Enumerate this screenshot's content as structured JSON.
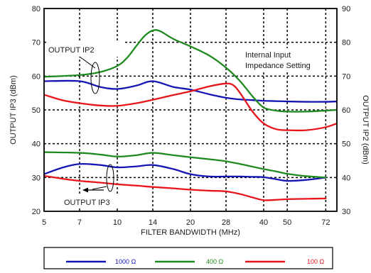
{
  "chart_data": {
    "type": "line",
    "title": "",
    "xlabel": "FILTER BANDWIDTH (MHz)",
    "ylabel_left": "OUTPUT IP3 (dBm)",
    "ylabel_right": "OUTPUT IP2 (dBm)",
    "x_scale": "log",
    "xlim": [
      5,
      80
    ],
    "x_ticks": [
      5,
      7,
      10,
      14,
      20,
      28,
      40,
      50,
      72
    ],
    "x_tick_labels": [
      "5",
      "7",
      "10",
      "14",
      "20",
      "28",
      "40",
      "50",
      "72"
    ],
    "ylim_left": [
      20,
      80
    ],
    "y_ticks_left": [
      20,
      30,
      40,
      50,
      60,
      70,
      80
    ],
    "ylim_right": [
      30,
      90
    ],
    "y_ticks_right": [
      30,
      40,
      50,
      60,
      70,
      80,
      90
    ],
    "grid": "dashed",
    "annotations": {
      "ip2": "OUTPUT IP2",
      "ip3": "OUTPUT IP3",
      "impedance_line1": "Internal Input",
      "impedance_line2": "Impedance Setting"
    },
    "legend": [
      {
        "label": "1000 Ω",
        "color": "#1515b5"
      },
      {
        "label": "400 Ω",
        "color": "#1f8a1f"
      },
      {
        "label": "100 Ω",
        "color": "#e8141c"
      }
    ],
    "series": [
      {
        "group": "ip2",
        "legend_index": 0,
        "axis": "right",
        "x": [
          5,
          7,
          8.5,
          10,
          12,
          14,
          17,
          20,
          24,
          28,
          32,
          36,
          40,
          45,
          50,
          60,
          72,
          80
        ],
        "y": [
          68.5,
          68.5,
          66.8,
          66.2,
          67.2,
          68.5,
          66.8,
          66.0,
          64.6,
          63.6,
          63.1,
          62.9,
          62.7,
          62.6,
          62.5,
          62.4,
          62.4,
          62.5
        ]
      },
      {
        "group": "ip2",
        "legend_index": 1,
        "axis": "right",
        "x": [
          5,
          7,
          8.5,
          10,
          11,
          12,
          13,
          14,
          15,
          17,
          20,
          24,
          28,
          32,
          36,
          40,
          45,
          50,
          60,
          72,
          80
        ],
        "y": [
          69.8,
          70.3,
          71.2,
          73.0,
          75.5,
          79.0,
          82.0,
          83.5,
          83.3,
          81.0,
          78.8,
          76.0,
          72.5,
          68.5,
          64.0,
          60.7,
          59.8,
          59.5,
          59.5,
          59.8,
          60.0
        ]
      },
      {
        "group": "ip2",
        "legend_index": 2,
        "axis": "right",
        "x": [
          5,
          6,
          7,
          8.5,
          10,
          12,
          14,
          17,
          20,
          24,
          28,
          30,
          32,
          36,
          40,
          45,
          50,
          60,
          72,
          80
        ],
        "y": [
          64.5,
          62.8,
          62.0,
          61.3,
          61.2,
          62.0,
          63.0,
          64.4,
          65.5,
          67.0,
          67.8,
          67.3,
          65.0,
          59.5,
          56.0,
          54.3,
          54.0,
          54.0,
          54.9,
          56.0
        ]
      },
      {
        "group": "ip3",
        "legend_index": 0,
        "axis": "left",
        "x": [
          5,
          6,
          7,
          8.5,
          10,
          12,
          14,
          17,
          20,
          24,
          28,
          32,
          36,
          40,
          45,
          50,
          60,
          72
        ],
        "y": [
          31.0,
          33.0,
          34.0,
          33.7,
          33.0,
          33.3,
          33.7,
          32.5,
          31.0,
          30.3,
          30.3,
          30.3,
          30.2,
          30.1,
          29.5,
          29.0,
          29.3,
          30.0
        ]
      },
      {
        "group": "ip3",
        "legend_index": 1,
        "axis": "left",
        "x": [
          5,
          7,
          8.5,
          10,
          12,
          14,
          17,
          20,
          24,
          28,
          32,
          36,
          40,
          45,
          50,
          60,
          72
        ],
        "y": [
          37.5,
          37.3,
          36.8,
          36.2,
          36.6,
          37.3,
          36.6,
          36.0,
          35.4,
          34.8,
          34.0,
          33.2,
          32.5,
          31.8,
          31.1,
          30.4,
          30.0
        ]
      },
      {
        "group": "ip3",
        "legend_index": 2,
        "axis": "left",
        "x": [
          5,
          6,
          7,
          8.5,
          10,
          12,
          14,
          17,
          20,
          24,
          28,
          32,
          36,
          40,
          45,
          50,
          60,
          72
        ],
        "y": [
          30.5,
          29.6,
          29.0,
          28.5,
          28.0,
          27.6,
          27.2,
          26.8,
          26.4,
          26.1,
          25.9,
          25.1,
          24.1,
          23.3,
          23.4,
          23.6,
          23.7,
          23.8
        ]
      }
    ]
  }
}
